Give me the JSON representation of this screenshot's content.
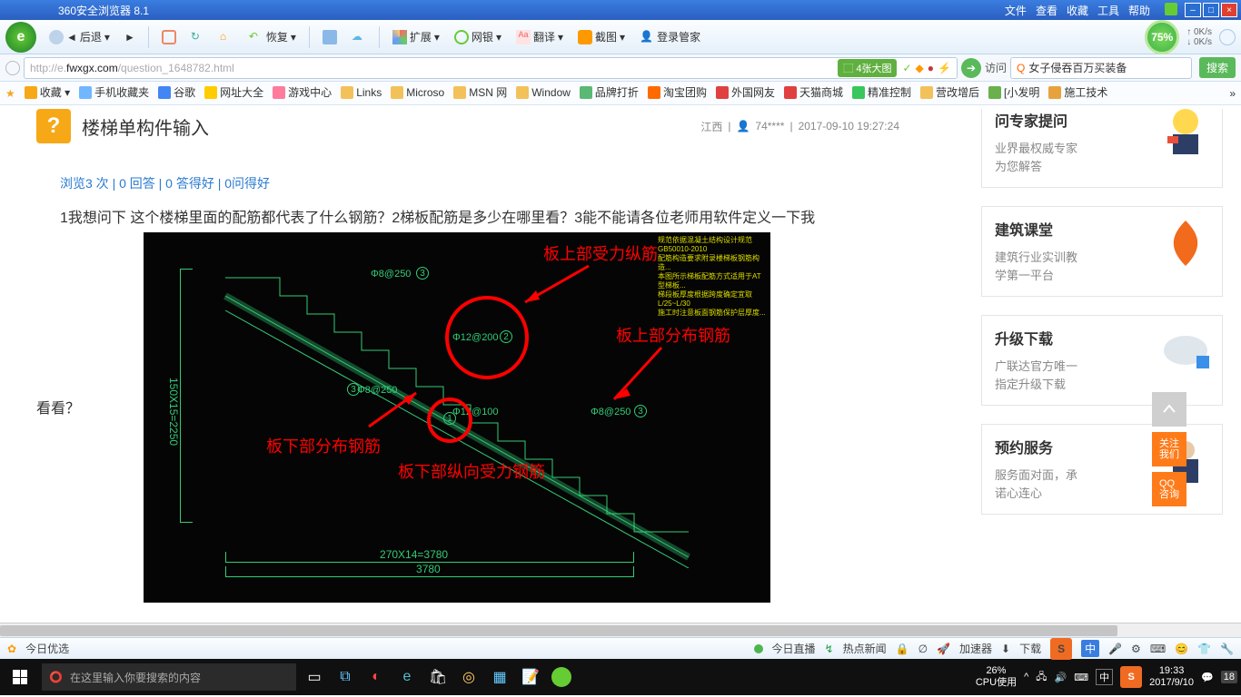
{
  "titlebar": {
    "title": "360安全浏览器 8.1",
    "menus": [
      "文件",
      "查看",
      "收藏",
      "工具",
      "帮助"
    ]
  },
  "toolbar": {
    "back": "后退",
    "restore": "恢复",
    "ext": "扩展",
    "bank": "网银",
    "translate": "翻译",
    "capture": "截图",
    "login": "登录管家",
    "pct": "75%",
    "up": "0K/s",
    "down": "0K/s"
  },
  "addr": {
    "url_gray": "http://e.",
    "url_dom": "fwxgx.com",
    "url_tail": "/question_1648782.html",
    "tag": "⬚ 4张大图",
    "visit": "访问",
    "search_q": "女子侵吞百万买装备",
    "search_btn": "搜索"
  },
  "bookmarks": [
    {
      "ico": "#f7a817",
      "t": "收藏 ▾"
    },
    {
      "ico": "#71b7ff",
      "t": "手机收藏夹"
    },
    {
      "ico": "#4285f4",
      "t": "谷歌"
    },
    {
      "ico": "#ffcc00",
      "t": "网址大全"
    },
    {
      "ico": "#ff7b9c",
      "t": "游戏中心"
    },
    {
      "ico": "#f3c15a",
      "t": "Links"
    },
    {
      "ico": "#f3c15a",
      "t": "Microso"
    },
    {
      "ico": "#f3c15a",
      "t": "MSN 网"
    },
    {
      "ico": "#f3c15a",
      "t": "Window"
    },
    {
      "ico": "#5bb974",
      "t": "品牌打折"
    },
    {
      "ico": "#ff6a00",
      "t": "淘宝团购"
    },
    {
      "ico": "#e04040",
      "t": "外国网友"
    },
    {
      "ico": "#e04040",
      "t": "天猫商城"
    },
    {
      "ico": "#38c75d",
      "t": "精准控制"
    },
    {
      "ico": "#f3c15a",
      "t": "营改增后"
    },
    {
      "ico": "#6ab04c",
      "t": "[小发明"
    },
    {
      "ico": "#e8a23c",
      "t": "施工技术"
    }
  ],
  "question": {
    "title": "楼梯单构件输入",
    "loc": "江西",
    "user": "74****",
    "time": "2017-09-10 19:27:24",
    "stats": "浏览3 次 | 0 回答 | 0 答得好 | 0问得好",
    "body": "1我想问下 这个楼梯里面的配筋都代表了什么钢筋？2梯板配筋是多少在哪里看？3能不能请各位老师用软件定义一下我",
    "look": "看看？"
  },
  "diagram": {
    "ann1": "板上部受力纵筋",
    "ann2": "板上部分布钢筋",
    "ann3": "板下部分布钢筋",
    "ann4": "板下部纵向受力钢筋",
    "r1": "Φ8@250",
    "r2": "Φ12@200",
    "r3": "Φ8@250",
    "r4": "Φ12@100",
    "r5": "Φ8@250",
    "dim_y": "150X15=2250",
    "dim_x1": "270X14=3780",
    "dim_x2": "3780"
  },
  "sidebar": [
    {
      "title": "问专家提问",
      "desc": "业界最权威专家\n为您解答"
    },
    {
      "title": "建筑课堂",
      "desc": "建筑行业实训教\n学第一平台"
    },
    {
      "title": "升级下载",
      "desc": "广联达官方唯一\n指定升级下载"
    },
    {
      "title": "预约服务",
      "desc": "服务面对面，承\n诺心连心"
    }
  ],
  "float": {
    "gz": "关注\n我们",
    "qq": "QQ\n咨询"
  },
  "status": {
    "left": "今日优选",
    "live": "今日直播",
    "hot": "热点新闻",
    "acc": "加速器",
    "dl": "下载"
  },
  "taskbar": {
    "search": "在这里输入你要搜索的内容",
    "cpu_p": "26%",
    "cpu_t": "CPU使用",
    "ime": "中",
    "time": "19:33",
    "date": "2017/9/10"
  }
}
